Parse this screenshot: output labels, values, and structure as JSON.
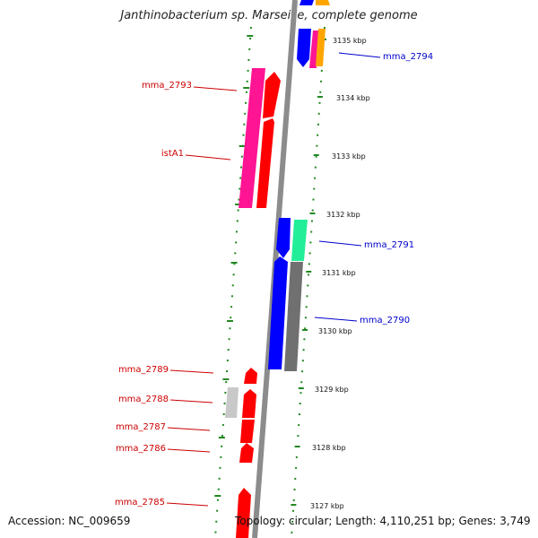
{
  "title": "Janthinobacterium sp. Marseille, complete genome",
  "accession": "Accession: NC_009659",
  "topology": "Topology: circular; Length: 4,110,251 bp; Genes: 3,749",
  "colors": {
    "left_label": "#cc0000",
    "right_label": "#0000cc",
    "backbone": "#808080",
    "tick_dots": "#228822",
    "red": "#ff0000",
    "pink": "#ff1493",
    "blue": "#0000ff",
    "gray": "#707070",
    "lightgray": "#c0c0c0",
    "green": "#22ee99",
    "orange": "#ffa500"
  },
  "scale_labels": [
    "3135 kbp",
    "3134 kbp",
    "3133 kbp",
    "3132 kbp",
    "3131 kbp",
    "3130 kbp",
    "3129 kbp",
    "3128 kbp",
    "3127 kbp"
  ],
  "left_gene_labels": [
    "mma_2793",
    "istA1",
    "mma_2789",
    "mma_2788",
    "mma_2787",
    "mma_2786",
    "mma_2785"
  ],
  "right_gene_labels": [
    "mma_2794",
    "mma_2791",
    "mma_2790"
  ]
}
